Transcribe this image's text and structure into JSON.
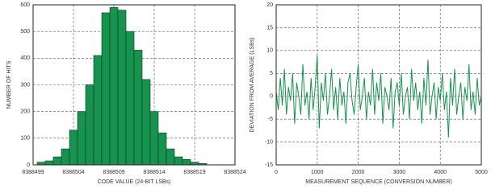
{
  "chart_data": [
    {
      "type": "histogram",
      "xlabel": "CODE VALUE (24-BIT LSBs)",
      "ylabel": "NUMBER OF HITS",
      "bins": [
        8388499.5,
        8388500.5,
        8388501.5,
        8388502.5,
        8388503.5,
        8388504.5,
        8388505.5,
        8388506.5,
        8388507.5,
        8388508.5,
        8388509.5,
        8388510.5,
        8388511.5,
        8388512.5,
        8388513.5,
        8388514.5,
        8388515.5,
        8388516.5,
        8388517.5,
        8388518.5,
        8388519.5,
        8388520.5
      ],
      "values": [
        10,
        15,
        30,
        60,
        130,
        200,
        300,
        410,
        570,
        590,
        580,
        500,
        430,
        320,
        200,
        120,
        60,
        30,
        20,
        10,
        5
      ],
      "color": "#17924f",
      "xlim": [
        8388499,
        8388524
      ],
      "xticks": [
        8388499,
        8388504,
        8388509,
        8388514,
        8388519,
        8388524
      ],
      "ylim": [
        0,
        600
      ],
      "yticks": [
        0,
        100,
        200,
        300,
        400,
        500,
        600
      ],
      "grid": true
    },
    {
      "type": "line",
      "xlabel": "MEASUREMENT SEQUENCE (CONVERSION NUMBER)",
      "ylabel": "DEVIATION FROM AVERAGE (LSBs)",
      "x": [
        0,
        50,
        100,
        150,
        200,
        250,
        300,
        350,
        400,
        450,
        500,
        550,
        600,
        650,
        700,
        750,
        800,
        850,
        900,
        950,
        1000,
        1050,
        1100,
        1150,
        1200,
        1250,
        1300,
        1350,
        1400,
        1450,
        1500,
        1550,
        1600,
        1650,
        1700,
        1750,
        1800,
        1850,
        1900,
        1950,
        2000,
        2050,
        2100,
        2150,
        2200,
        2250,
        2300,
        2350,
        2400,
        2450,
        2500,
        2550,
        2600,
        2650,
        2700,
        2750,
        2800,
        2850,
        2900,
        2950,
        3000,
        3050,
        3100,
        3150,
        3200,
        3250,
        3300,
        3350,
        3400,
        3450,
        3500,
        3550,
        3600,
        3650,
        3700,
        3750,
        3800,
        3850,
        3900,
        3950,
        4000,
        4050,
        4100,
        4150,
        4200,
        4250,
        4300,
        4350,
        4400,
        4450,
        4500,
        4550,
        4600,
        4650,
        4700,
        4750,
        4800,
        4850,
        4900,
        4950,
        5000
      ],
      "series": [
        {
          "color": "#17924f",
          "values": [
            1,
            -3,
            4,
            -2,
            6,
            -4,
            2,
            -1,
            5,
            -6,
            3,
            0,
            -4,
            7,
            -2,
            1,
            -5,
            4,
            -3,
            2,
            9,
            -7,
            3,
            -1,
            5,
            -4,
            0,
            6,
            -3,
            2,
            -5,
            4,
            -2,
            1,
            -6,
            3,
            5,
            -1,
            -4,
            2,
            7,
            -3,
            0,
            4,
            -5,
            1,
            -2,
            6,
            -4,
            3,
            -1,
            5,
            -6,
            2,
            0,
            -3,
            4,
            -7,
            1,
            3,
            -2,
            5,
            -4,
            0,
            2,
            -5,
            6,
            -1,
            3,
            -3,
            1,
            -6,
            4,
            -2,
            8,
            -4,
            0,
            3,
            -5,
            2,
            -1,
            5,
            -3,
            1,
            -9,
            4,
            -2,
            6,
            -4,
            0,
            3,
            -5,
            2,
            -1,
            7,
            -3,
            1,
            -4,
            4,
            -2,
            0
          ]
        }
      ],
      "xlim": [
        0,
        5000
      ],
      "xticks": [
        0,
        1000,
        2000,
        3000,
        4000,
        5000
      ],
      "ylim": [
        -15,
        20
      ],
      "yticks": [
        -15,
        -10,
        -5,
        0,
        5,
        10,
        15,
        20
      ],
      "grid": true
    }
  ]
}
